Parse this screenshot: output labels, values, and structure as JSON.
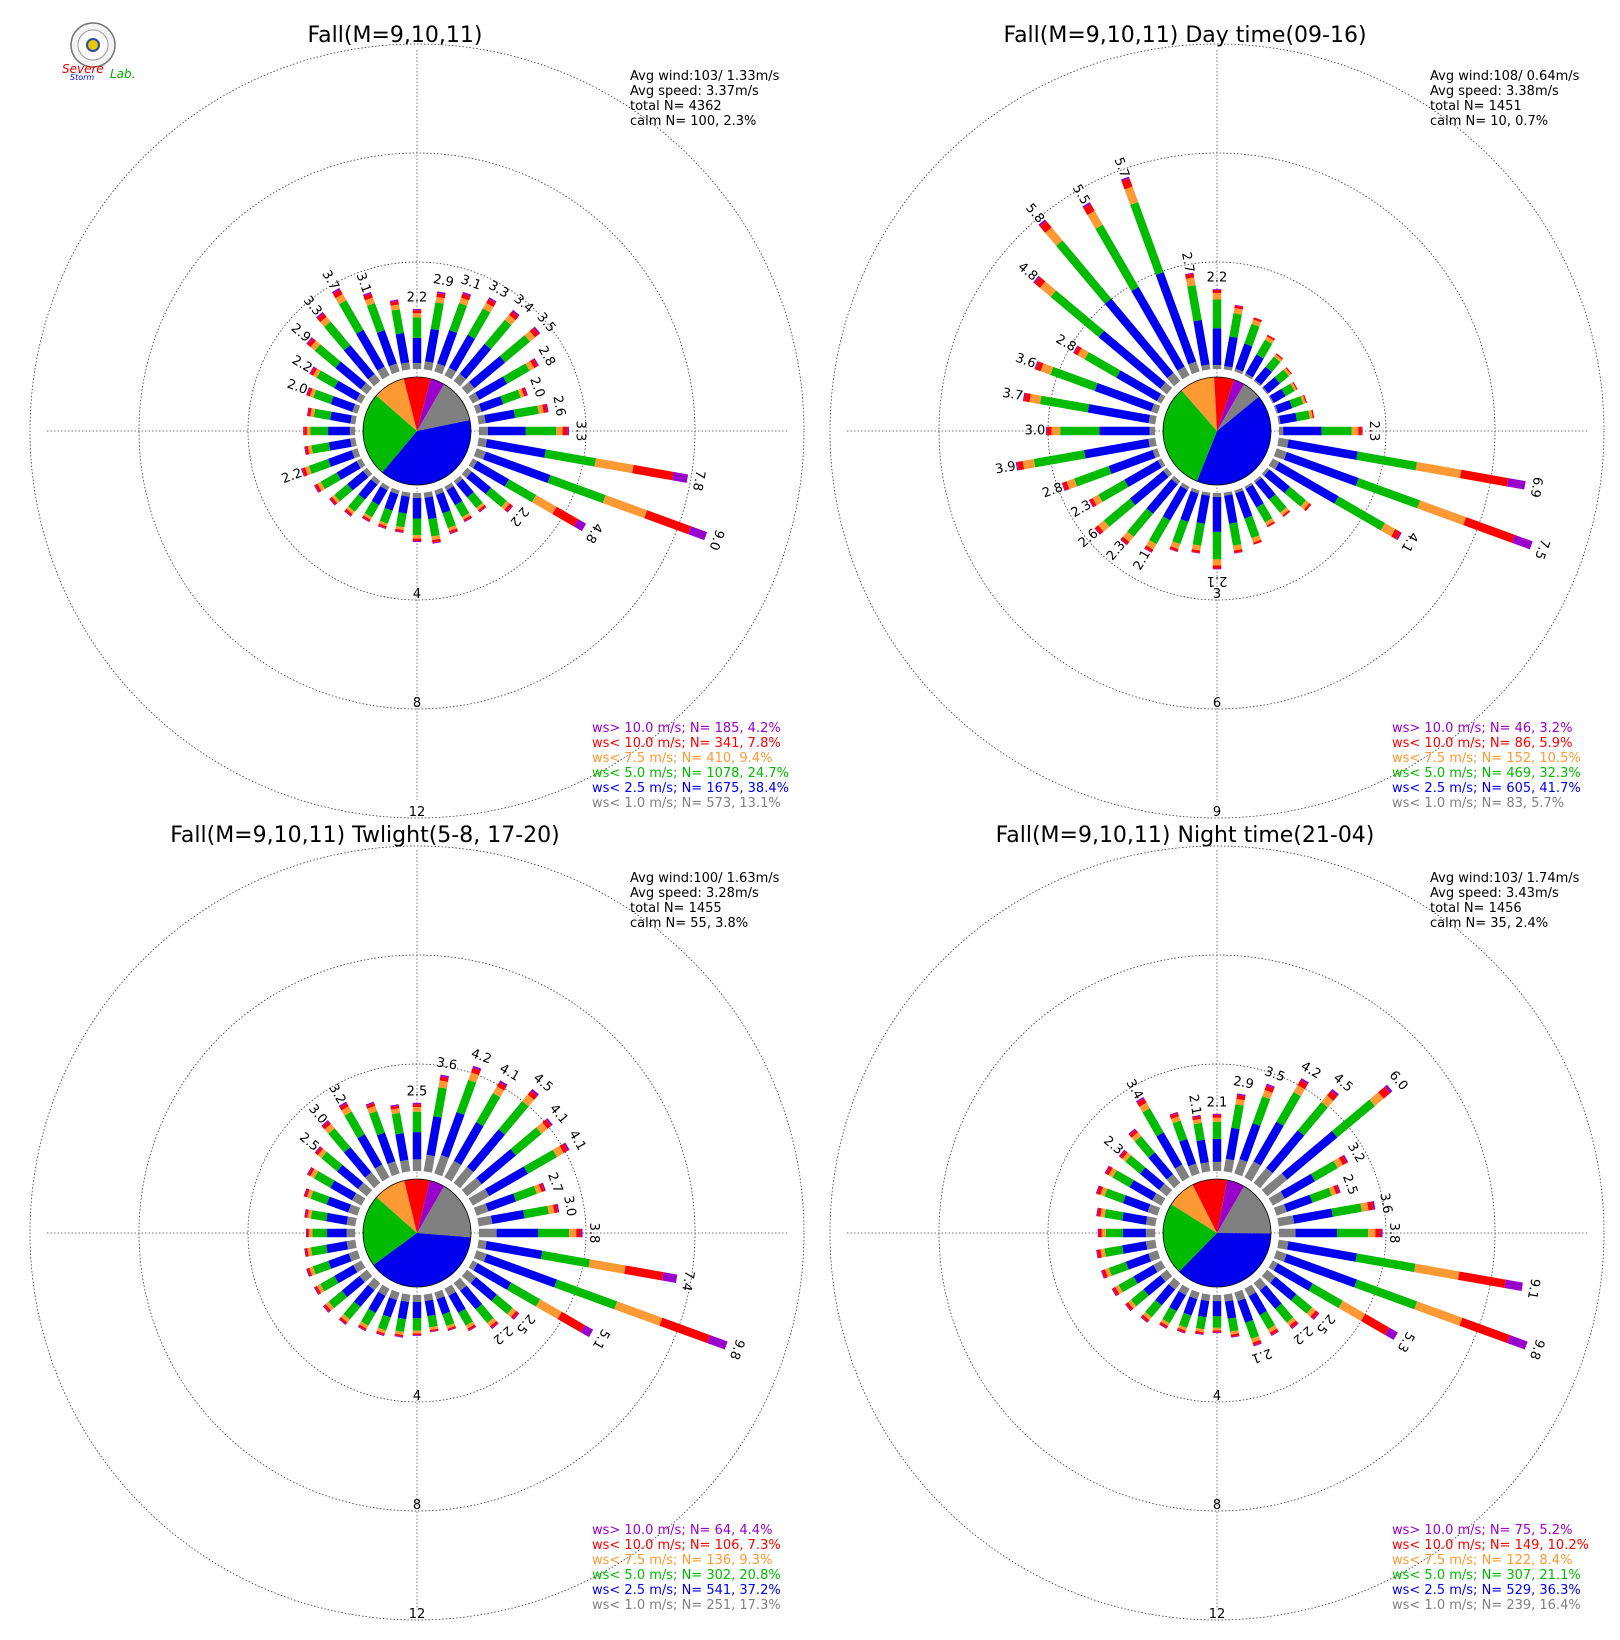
{
  "logo": {
    "lines": [
      "Severe",
      "Storm",
      "Lab."
    ]
  },
  "bins": [
    {
      "name": "calm"
    },
    {
      "key": "ws< 1.0 m/s",
      "color": "#808080"
    },
    {
      "key": "ws< 2.5 m/s",
      "color": "#0000ee"
    },
    {
      "key": "ws< 5.0 m/s",
      "color": "#00bb00"
    },
    {
      "key": "ws< 7.5 m/s",
      "color": "#ff9933"
    },
    {
      "key": "ws< 10.0 m/s",
      "color": "#ff0000"
    },
    {
      "key": "ws> 10.0 m/s",
      "color": "#9900cc"
    }
  ],
  "chart_data": [
    {
      "type": "wind_rose",
      "title": "Fall(M=9,10,11)",
      "stats": [
        "Avg wind:103/ 1.33m/s",
        "Avg speed: 3.37m/s",
        "total N=       4362",
        "calm N=    100,   2.3%"
      ],
      "rings": [
        4,
        8,
        12
      ],
      "ring_labels": [
        "4",
        "8",
        "12"
      ],
      "legend": [
        "ws> 10.0 m/s; N=   185,  4.2%",
        "ws< 10.0 m/s; N=   341,  7.8%",
        "ws<  7.5 m/s; N=   410,  9.4%",
        "ws<  5.0 m/s; N=  1078, 24.7%",
        "ws<  2.5 m/s; N=  1675, 38.4%",
        "ws<  1.0 m/s; N=   573, 13.1%"
      ],
      "pie": [
        13.1,
        38.4,
        24.7,
        9.4,
        7.8,
        4.2
      ],
      "directions": [
        {
          "dir": 0,
          "v": 2.2,
          "label": "2.2"
        },
        {
          "dir": 10,
          "v": 2.9,
          "label": "2.9"
        },
        {
          "dir": 20,
          "v": 3.1,
          "label": "3.1"
        },
        {
          "dir": 30,
          "v": 3.3,
          "label": "3.3"
        },
        {
          "dir": 40,
          "v": 3.4,
          "label": "3.4"
        },
        {
          "dir": 50,
          "v": 3.5,
          "label": "3.5"
        },
        {
          "dir": 60,
          "v": 2.8,
          "label": "2.8"
        },
        {
          "dir": 70,
          "v": 2.0,
          "label": "2.0"
        },
        {
          "dir": 80,
          "v": 2.6,
          "label": "2.6"
        },
        {
          "dir": 90,
          "v": 3.3,
          "label": "3.3"
        },
        {
          "dir": 100,
          "v": 7.8,
          "label": "7.8"
        },
        {
          "dir": 110,
          "v": 9.0,
          "label": "9.0"
        },
        {
          "dir": 120,
          "v": 4.8,
          "label": "4.8"
        },
        {
          "dir": 130,
          "v": 2.2,
          "label": "2.2"
        },
        {
          "dir": 140,
          "v": 1.5
        },
        {
          "dir": 150,
          "v": 1.5
        },
        {
          "dir": 160,
          "v": 1.7
        },
        {
          "dir": 170,
          "v": 1.9
        },
        {
          "dir": 180,
          "v": 1.8
        },
        {
          "dir": 190,
          "v": 1.5
        },
        {
          "dir": 200,
          "v": 1.5
        },
        {
          "dir": 210,
          "v": 1.5
        },
        {
          "dir": 220,
          "v": 1.7
        },
        {
          "dir": 230,
          "v": 1.8
        },
        {
          "dir": 240,
          "v": 2.0
        },
        {
          "dir": 250,
          "v": 2.2,
          "label": "2.2"
        },
        {
          "dir": 260,
          "v": 1.9
        },
        {
          "dir": 270,
          "v": 1.9
        },
        {
          "dir": 280,
          "v": 1.8
        },
        {
          "dir": 290,
          "v": 2.0,
          "label": "2.0"
        },
        {
          "dir": 300,
          "v": 2.2,
          "label": "2.2"
        },
        {
          "dir": 310,
          "v": 2.9,
          "label": "2.9"
        },
        {
          "dir": 320,
          "v": 3.3,
          "label": "3.3"
        },
        {
          "dir": 330,
          "v": 3.7,
          "label": "3.7"
        },
        {
          "dir": 340,
          "v": 3.1,
          "label": "3.1"
        },
        {
          "dir": 350,
          "v": 2.6
        }
      ]
    },
    {
      "type": "wind_rose",
      "title": "Fall(M=9,10,11) Day time(09-16)",
      "stats": [
        "Avg wind:108/ 0.64m/s",
        "Avg speed: 3.38m/s",
        "total N=       1451",
        "calm N=     10,   0.7%"
      ],
      "rings": [
        3,
        6,
        9
      ],
      "ring_labels": [
        "3",
        "6",
        "9"
      ],
      "legend": [
        "ws> 10.0 m/s; N=    46,  3.2%",
        "ws< 10.0 m/s; N=    86,  5.9%",
        "ws<  7.5 m/s; N=   152, 10.5%",
        "ws<  5.0 m/s; N=   469, 32.3%",
        "ws<  2.5 m/s; N=   605, 41.7%",
        "ws<  1.0 m/s; N=    83,  5.7%"
      ],
      "pie": [
        5.7,
        41.7,
        32.3,
        10.5,
        5.9,
        3.2
      ],
      "directions": [
        {
          "dir": 0,
          "v": 2.2,
          "label": "2.2"
        },
        {
          "dir": 10,
          "v": 1.8
        },
        {
          "dir": 20,
          "v": 1.6
        },
        {
          "dir": 30,
          "v": 1.3
        },
        {
          "dir": 40,
          "v": 1.0
        },
        {
          "dir": 50,
          "v": 0.9
        },
        {
          "dir": 60,
          "v": 0.8
        },
        {
          "dir": 70,
          "v": 0.9
        },
        {
          "dir": 80,
          "v": 1.0
        },
        {
          "dir": 90,
          "v": 2.3,
          "label": "2.3"
        },
        {
          "dir": 100,
          "v": 6.9,
          "label": "6.9"
        },
        {
          "dir": 110,
          "v": 7.5,
          "label": "7.5"
        },
        {
          "dir": 120,
          "v": 4.1,
          "label": "4.1"
        },
        {
          "dir": 130,
          "v": 1.6
        },
        {
          "dir": 140,
          "v": 1.3
        },
        {
          "dir": 150,
          "v": 1.3
        },
        {
          "dir": 160,
          "v": 1.6
        },
        {
          "dir": 170,
          "v": 1.7
        },
        {
          "dir": 180,
          "v": 2.1,
          "label": "2.1"
        },
        {
          "dir": 190,
          "v": 1.7
        },
        {
          "dir": 200,
          "v": 1.8
        },
        {
          "dir": 210,
          "v": 2.1,
          "label": "2.1"
        },
        {
          "dir": 220,
          "v": 2.3,
          "label": "2.3"
        },
        {
          "dir": 230,
          "v": 2.6,
          "label": "2.6"
        },
        {
          "dir": 240,
          "v": 2.3,
          "label": "2.3"
        },
        {
          "dir": 250,
          "v": 2.8,
          "label": "2.8"
        },
        {
          "dir": 260,
          "v": 3.9,
          "label": "3.9"
        },
        {
          "dir": 270,
          "v": 3.0,
          "label": "3.0"
        },
        {
          "dir": 280,
          "v": 3.7,
          "label": "3.7"
        },
        {
          "dir": 290,
          "v": 3.6,
          "label": "3.6"
        },
        {
          "dir": 300,
          "v": 2.8,
          "label": "2.8"
        },
        {
          "dir": 310,
          "v": 4.8,
          "label": "4.8"
        },
        {
          "dir": 320,
          "v": 5.8,
          "label": "5.8"
        },
        {
          "dir": 330,
          "v": 5.5,
          "label": "5.5"
        },
        {
          "dir": 340,
          "v": 5.7,
          "label": "5.7"
        },
        {
          "dir": 350,
          "v": 2.7,
          "label": "2.7"
        }
      ]
    },
    {
      "type": "wind_rose",
      "title": "Fall(M=9,10,11) Twlight(5-8, 17-20)",
      "stats": [
        "Avg wind:100/ 1.63m/s",
        "Avg speed: 3.28m/s",
        "total N=       1455",
        "calm N=     55,   3.8%"
      ],
      "rings": [
        4,
        8,
        12
      ],
      "ring_labels": [
        "4",
        "8",
        "12"
      ],
      "legend": [
        "ws> 10.0 m/s; N=    64,  4.4%",
        "ws< 10.0 m/s; N=   106,  7.3%",
        "ws<  7.5 m/s; N=   136,  9.3%",
        "ws<  5.0 m/s; N=   302, 20.8%",
        "ws<  2.5 m/s; N=   541, 37.2%",
        "ws<  1.0 m/s; N=   251, 17.3%"
      ],
      "pie": [
        17.3,
        37.2,
        20.8,
        9.3,
        7.3,
        4.4
      ],
      "directions": [
        {
          "dir": 0,
          "v": 2.5,
          "label": "2.5"
        },
        {
          "dir": 10,
          "v": 3.6,
          "label": "3.6"
        },
        {
          "dir": 20,
          "v": 4.2,
          "label": "4.2"
        },
        {
          "dir": 30,
          "v": 4.1,
          "label": "4.1"
        },
        {
          "dir": 40,
          "v": 4.5,
          "label": "4.5"
        },
        {
          "dir": 50,
          "v": 4.1,
          "label": "4.1"
        },
        {
          "dir": 60,
          "v": 4.1,
          "label": "4.1"
        },
        {
          "dir": 70,
          "v": 2.7,
          "label": "2.7"
        },
        {
          "dir": 80,
          "v": 3.0,
          "label": "3.0"
        },
        {
          "dir": 90,
          "v": 3.8,
          "label": "3.8"
        },
        {
          "dir": 100,
          "v": 7.4,
          "label": "7.4"
        },
        {
          "dir": 110,
          "v": 9.8,
          "label": "9.8"
        },
        {
          "dir": 120,
          "v": 5.1,
          "label": "5.1"
        },
        {
          "dir": 130,
          "v": 2.5,
          "label": "2.5"
        },
        {
          "dir": 140,
          "v": 2.2,
          "label": "2.2"
        },
        {
          "dir": 150,
          "v": 1.8
        },
        {
          "dir": 160,
          "v": 1.5
        },
        {
          "dir": 170,
          "v": 1.4
        },
        {
          "dir": 180,
          "v": 1.5
        },
        {
          "dir": 190,
          "v": 1.6
        },
        {
          "dir": 200,
          "v": 1.7
        },
        {
          "dir": 210,
          "v": 1.8
        },
        {
          "dir": 220,
          "v": 2.0
        },
        {
          "dir": 230,
          "v": 2.1
        },
        {
          "dir": 240,
          "v": 2.0
        },
        {
          "dir": 250,
          "v": 2.0
        },
        {
          "dir": 260,
          "v": 1.9
        },
        {
          "dir": 270,
          "v": 1.8
        },
        {
          "dir": 280,
          "v": 1.9
        },
        {
          "dir": 290,
          "v": 2.1
        },
        {
          "dir": 300,
          "v": 2.3
        },
        {
          "dir": 310,
          "v": 2.5,
          "label": "2.5"
        },
        {
          "dir": 320,
          "v": 3.0,
          "label": "3.0"
        },
        {
          "dir": 330,
          "v": 3.2,
          "label": "3.2"
        },
        {
          "dir": 340,
          "v": 2.8
        },
        {
          "dir": 350,
          "v": 2.5
        }
      ]
    },
    {
      "type": "wind_rose",
      "title": "Fall(M=9,10,11) Night time(21-04)",
      "stats": [
        "Avg wind:103/ 1.74m/s",
        "Avg speed: 3.43m/s",
        "total N=       1456",
        "calm N=     35,   2.4%"
      ],
      "rings": [
        4,
        8,
        12
      ],
      "ring_labels": [
        "4",
        "8",
        "12"
      ],
      "legend": [
        "ws> 10.0 m/s; N=    75,  5.2%",
        "ws< 10.0 m/s; N=   149, 10.2%",
        "ws<  7.5 m/s; N=   122,  8.4%",
        "ws<  5.0 m/s; N=   307, 21.1%",
        "ws<  2.5 m/s; N=   529, 36.3%",
        "ws<  1.0 m/s; N=   239, 16.4%"
      ],
      "pie": [
        16.4,
        36.3,
        21.1,
        8.4,
        10.2,
        5.2
      ],
      "directions": [
        {
          "dir": 0,
          "v": 2.1,
          "label": "2.1"
        },
        {
          "dir": 10,
          "v": 2.9,
          "label": "2.9"
        },
        {
          "dir": 20,
          "v": 3.5,
          "label": "3.5"
        },
        {
          "dir": 30,
          "v": 4.2,
          "label": "4.2"
        },
        {
          "dir": 40,
          "v": 4.5,
          "label": "4.5"
        },
        {
          "dir": 50,
          "v": 6.0,
          "label": "6.0"
        },
        {
          "dir": 60,
          "v": 3.2,
          "label": "3.2"
        },
        {
          "dir": 70,
          "v": 2.5,
          "label": "2.5"
        },
        {
          "dir": 80,
          "v": 3.6,
          "label": "3.6"
        },
        {
          "dir": 90,
          "v": 3.8,
          "label": "3.8"
        },
        {
          "dir": 100,
          "v": 9.1,
          "label": "9.1"
        },
        {
          "dir": 110,
          "v": 9.8,
          "label": "9.8"
        },
        {
          "dir": 120,
          "v": 5.3,
          "label": "5.3"
        },
        {
          "dir": 130,
          "v": 2.5,
          "label": "2.5"
        },
        {
          "dir": 140,
          "v": 2.2,
          "label": "2.2"
        },
        {
          "dir": 150,
          "v": 2.0
        },
        {
          "dir": 160,
          "v": 2.1,
          "label": "2.1"
        },
        {
          "dir": 170,
          "v": 1.6
        },
        {
          "dir": 180,
          "v": 1.4
        },
        {
          "dir": 190,
          "v": 1.5
        },
        {
          "dir": 200,
          "v": 1.6
        },
        {
          "dir": 210,
          "v": 1.7
        },
        {
          "dir": 220,
          "v": 1.9
        },
        {
          "dir": 230,
          "v": 2.0
        },
        {
          "dir": 240,
          "v": 2.1
        },
        {
          "dir": 250,
          "v": 2.2
        },
        {
          "dir": 260,
          "v": 2.2
        },
        {
          "dir": 270,
          "v": 2.1
        },
        {
          "dir": 280,
          "v": 2.2
        },
        {
          "dir": 290,
          "v": 2.4
        },
        {
          "dir": 300,
          "v": 2.4
        },
        {
          "dir": 310,
          "v": 2.3,
          "label": "2.3"
        },
        {
          "dir": 320,
          "v": 2.6
        },
        {
          "dir": 330,
          "v": 3.4,
          "label": "3.4"
        },
        {
          "dir": 340,
          "v": 2.4
        },
        {
          "dir": 350,
          "v": 2.1,
          "label": "2.1"
        }
      ]
    }
  ]
}
